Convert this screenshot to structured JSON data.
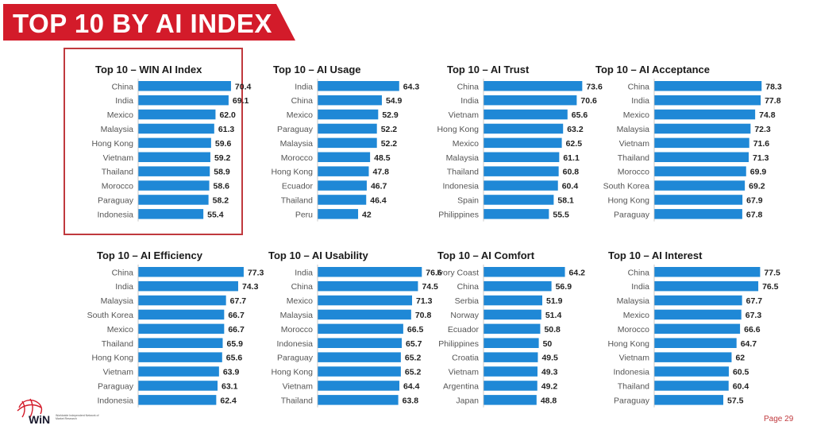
{
  "header": {
    "title": "TOP 10 BY AI INDEX",
    "banner_color": "#d31b2a"
  },
  "footer": {
    "logo_text": "WiN",
    "logo_subtext": "Worldwide Independent Network of Market Research",
    "page": "Page 29"
  },
  "colors": {
    "bar": "#1f88d6",
    "highlight": "#c0393e"
  },
  "chart_data": [
    {
      "type": "bar",
      "orientation": "horizontal",
      "title": "Top 10 – WIN AI Index",
      "categories": [
        "China",
        "India",
        "Mexico",
        "Malaysia",
        "Hong Kong",
        "Vietnam",
        "Thailand",
        "Morocco",
        "Paraguay",
        "Indonesia"
      ],
      "values": [
        70.4,
        69.1,
        62.0,
        61.3,
        59.6,
        59.2,
        58.9,
        58.6,
        58.2,
        55.4
      ],
      "labels": [
        "70.4",
        "69.1",
        "62.0",
        "61.3",
        "59.6",
        "59.2",
        "58.9",
        "58.6",
        "58.2",
        "55.4"
      ]
    },
    {
      "type": "bar",
      "orientation": "horizontal",
      "title": "Top 10 – AI Usage",
      "categories": [
        "India",
        "China",
        "Mexico",
        "Paraguay",
        "Malaysia",
        "Morocco",
        "Hong Kong",
        "Ecuador",
        "Thailand",
        "Peru"
      ],
      "values": [
        64.3,
        54.9,
        52.9,
        52.2,
        52.2,
        48.5,
        47.8,
        46.7,
        46.4,
        42
      ],
      "labels": [
        "64.3",
        "54.9",
        "52.9",
        "52.2",
        "52.2",
        "48.5",
        "47.8",
        "46.7",
        "46.4",
        "42"
      ]
    },
    {
      "type": "bar",
      "orientation": "horizontal",
      "title": "Top 10 – AI Trust",
      "categories": [
        "China",
        "India",
        "Vietnam",
        "Hong Kong",
        "Mexico",
        "Malaysia",
        "Thailand",
        "Indonesia",
        "Spain",
        "Philippines"
      ],
      "values": [
        73.6,
        70.6,
        65.6,
        63.2,
        62.5,
        61.1,
        60.8,
        60.4,
        58.1,
        55.5
      ],
      "labels": [
        "73.6",
        "70.6",
        "65.6",
        "63.2",
        "62.5",
        "61.1",
        "60.8",
        "60.4",
        "58.1",
        "55.5"
      ]
    },
    {
      "type": "bar",
      "orientation": "horizontal",
      "title": "Top 10 – AI Acceptance",
      "categories": [
        "China",
        "India",
        "Mexico",
        "Malaysia",
        "Vietnam",
        "Thailand",
        "Morocco",
        "South Korea",
        "Hong Kong",
        "Paraguay"
      ],
      "values": [
        78.3,
        77.8,
        74.8,
        72.3,
        71.6,
        71.3,
        69.9,
        69.2,
        67.9,
        67.8
      ],
      "labels": [
        "78.3",
        "77.8",
        "74.8",
        "72.3",
        "71.6",
        "71.3",
        "69.9",
        "69.2",
        "67.9",
        "67.8"
      ]
    },
    {
      "type": "bar",
      "orientation": "horizontal",
      "title": "Top 10 – AI Efficiency",
      "categories": [
        "China",
        "India",
        "Malaysia",
        "South Korea",
        "Mexico",
        "Thailand",
        "Hong Kong",
        "Vietnam",
        "Paraguay",
        "Indonesia"
      ],
      "values": [
        77.3,
        74.3,
        67.7,
        66.7,
        66.7,
        65.9,
        65.6,
        63.9,
        63.1,
        62.4
      ],
      "labels": [
        "77.3",
        "74.3",
        "67.7",
        "66.7",
        "66.7",
        "65.9",
        "65.6",
        "63.9",
        "63.1",
        "62.4"
      ]
    },
    {
      "type": "bar",
      "orientation": "horizontal",
      "title": "Top 10 – AI Usability",
      "categories": [
        "India",
        "China",
        "Mexico",
        "Malaysia",
        "Morocco",
        "Indonesia",
        "Paraguay",
        "Hong Kong",
        "Vietnam",
        "Thailand"
      ],
      "values": [
        76.6,
        74.5,
        71.3,
        70.8,
        66.5,
        65.7,
        65.2,
        65.2,
        64.4,
        63.8
      ],
      "labels": [
        "76.6",
        "74.5",
        "71.3",
        "70.8",
        "66.5",
        "65.7",
        "65.2",
        "65.2",
        "64.4",
        "63.8"
      ]
    },
    {
      "type": "bar",
      "orientation": "horizontal",
      "title": "Top 10 – AI Comfort",
      "categories": [
        "Ivory Coast",
        "China",
        "Serbia",
        "Norway",
        "Ecuador",
        "Philippines",
        "Croatia",
        "Vietnam",
        "Argentina",
        "Japan"
      ],
      "values": [
        64.2,
        56.9,
        51.9,
        51.4,
        50.8,
        50,
        49.5,
        49.3,
        49.2,
        48.8
      ],
      "labels": [
        "64.2",
        "56.9",
        "51.9",
        "51.4",
        "50.8",
        "50",
        "49.5",
        "49.3",
        "49.2",
        "48.8"
      ]
    },
    {
      "type": "bar",
      "orientation": "horizontal",
      "title": "Top 10 – AI Interest",
      "categories": [
        "China",
        "India",
        "Malaysia",
        "Mexico",
        "Morocco",
        "Hong Kong",
        "Vietnam",
        "Indonesia",
        "Thailand",
        "Paraguay"
      ],
      "values": [
        77.5,
        76.5,
        67.7,
        67.3,
        66.6,
        64.7,
        62,
        60.5,
        60.4,
        57.5
      ],
      "labels": [
        "77.5",
        "76.5",
        "67.7",
        "67.3",
        "66.6",
        "64.7",
        "62",
        "60.5",
        "60.4",
        "57.5"
      ]
    }
  ]
}
